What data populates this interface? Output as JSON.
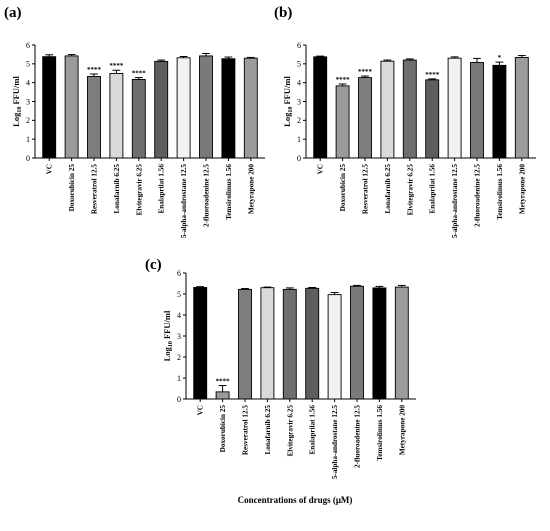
{
  "figure": {
    "x_title": "Concentrations of drugs (μM)"
  },
  "chart_data": [
    {
      "type": "bar",
      "panel_label": "(a)",
      "ylabel": "Log10 FFU/ml",
      "ylim": [
        0,
        6
      ],
      "yticks": [
        0,
        1,
        2,
        3,
        4,
        5,
        6
      ],
      "grid": false,
      "categories": [
        "VC",
        "Doxorubicin 25",
        "Resveratrol 12.5",
        "Lonafarnib 6.25",
        "Elvitegravir 6.25",
        "Enalaprilat 1.56",
        "5-alpha-androstane 12.5",
        "2-fluoroadenine 12.5",
        "Temsirolimus 1.56",
        "Metyrapone 200"
      ],
      "values": [
        5.38,
        5.42,
        4.33,
        4.49,
        4.17,
        5.13,
        5.32,
        5.42,
        5.27,
        5.3
      ],
      "errors": [
        0.1,
        0.07,
        0.13,
        0.17,
        0.1,
        0.07,
        0.07,
        0.13,
        0.09,
        0.04
      ],
      "significance": [
        "",
        "",
        "****",
        "****",
        "****",
        "",
        "",
        "",
        "",
        ""
      ],
      "colors": [
        "#000000",
        "#9b9b9b",
        "#7d7d7d",
        "#d9d9d9",
        "#6e6e6e",
        "#5e5e5e",
        "#f2f2f2",
        "#7a7a7a",
        "#000000",
        "#9b9b9b"
      ]
    },
    {
      "type": "bar",
      "panel_label": "(b)",
      "ylabel": "Log10 FFU/ml",
      "ylim": [
        0,
        6
      ],
      "yticks": [
        0,
        1,
        2,
        3,
        4,
        5,
        6
      ],
      "grid": false,
      "categories": [
        "VC",
        "Doxorubicin 25",
        "Resveratrol 12.5",
        "Lonafarnib 6.25",
        "Elvitegravir 6.25",
        "Enalaprilat 1.56",
        "5-alpha-androstane 12.5",
        "2-fluoroadenine 12.5",
        "Temsirolimus 1.56",
        "Metyrapone 200"
      ],
      "values": [
        5.37,
        3.83,
        4.27,
        5.14,
        5.2,
        4.15,
        5.3,
        5.07,
        4.92,
        5.34
      ],
      "errors": [
        0.04,
        0.1,
        0.08,
        0.06,
        0.06,
        0.05,
        0.07,
        0.22,
        0.17,
        0.1
      ],
      "significance": [
        "",
        "****",
        "****",
        "",
        "",
        "****",
        "",
        "",
        "*",
        ""
      ],
      "colors": [
        "#000000",
        "#9b9b9b",
        "#7d7d7d",
        "#d9d9d9",
        "#6e6e6e",
        "#5e5e5e",
        "#f2f2f2",
        "#7a7a7a",
        "#000000",
        "#9b9b9b"
      ]
    },
    {
      "type": "bar",
      "panel_label": "(c)",
      "ylabel": "Log10 FFU/ml",
      "ylim": [
        0,
        6
      ],
      "yticks": [
        0,
        1,
        2,
        3,
        4,
        5,
        6
      ],
      "grid": false,
      "categories": [
        "VC",
        "Doxorubicin 25",
        "Resveratrol 12.5",
        "Lonafarnib 6.25",
        "Elvitegravir 6.25",
        "Enalaprilat 1.56",
        "5-alpha-androstane 12.5",
        "2-fluoroadenine 12.5",
        "Temsirolimus 1.56",
        "Metyrapone 200"
      ],
      "values": [
        5.31,
        0.34,
        5.22,
        5.3,
        5.22,
        5.27,
        4.97,
        5.37,
        5.29,
        5.33
      ],
      "errors": [
        0.04,
        0.3,
        0.04,
        0.03,
        0.07,
        0.04,
        0.1,
        0.04,
        0.07,
        0.08
      ],
      "significance": [
        "",
        "****",
        "",
        "",
        "",
        "",
        "",
        "",
        "",
        ""
      ],
      "colors": [
        "#000000",
        "#9b9b9b",
        "#7d7d7d",
        "#d9d9d9",
        "#6e6e6e",
        "#5e5e5e",
        "#f2f2f2",
        "#7a7a7a",
        "#000000",
        "#9b9b9b"
      ]
    }
  ]
}
